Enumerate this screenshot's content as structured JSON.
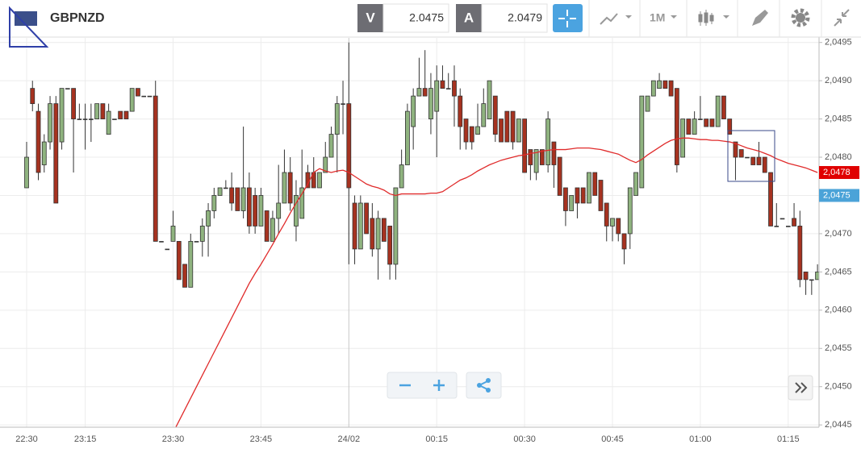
{
  "toolbar": {
    "symbol": "GBPNZD",
    "bid_label": "V",
    "bid": "2.0475",
    "ask_label": "A",
    "ask": "2.0479",
    "timeframe": "1M"
  },
  "chart_data": {
    "type": "candlestick",
    "categories": [
      "22:30",
      null,
      null,
      null,
      null,
      null,
      null,
      null,
      null,
      null,
      "23:15",
      null,
      null,
      null,
      null,
      null,
      null,
      null,
      null,
      null,
      null,
      null,
      null,
      null,
      null,
      "23:30",
      null,
      null,
      null,
      null,
      null,
      null,
      null,
      null,
      null,
      null,
      null,
      null,
      null,
      null,
      "23:45",
      null,
      null,
      null,
      null,
      null,
      null,
      null,
      null,
      null,
      null,
      null,
      null,
      null,
      null,
      "24/02",
      null,
      null,
      null,
      null,
      null,
      null,
      null,
      null,
      null,
      null,
      null,
      null,
      null,
      null,
      "00:15",
      null,
      null,
      null,
      null,
      null,
      null,
      null,
      null,
      null,
      null,
      null,
      null,
      null,
      null,
      "00:30",
      null,
      null,
      null,
      null,
      null,
      null,
      null,
      null,
      null,
      null,
      null,
      null,
      null,
      null,
      "00:45",
      null,
      null,
      null,
      null,
      null,
      null,
      null,
      null,
      null,
      null,
      null,
      null,
      null,
      null,
      "01:00",
      null,
      null,
      null,
      null,
      null,
      null,
      null,
      null,
      null,
      null,
      null,
      null,
      null,
      null,
      "01:15",
      null,
      null,
      null,
      null,
      null
    ],
    "open": [
      2.0476,
      2.0489,
      2.0486,
      2.0479,
      2.0482,
      2.0487,
      2.0482,
      2.0489,
      2.0489,
      2.0485,
      2.0485,
      2.0485,
      2.0485,
      2.0487,
      2.0483,
      2.0485,
      2.0486,
      2.0486,
      2.0486,
      2.0489,
      2.0488,
      2.0488,
      2.0488,
      2.0469,
      2.0468,
      2.0469,
      2.0469,
      2.0466,
      2.0463,
      2.0469,
      2.0469,
      2.0471,
      2.0473,
      2.0475,
      2.0476,
      2.0476,
      2.0476,
      2.0473,
      2.0476,
      2.0475,
      2.0471,
      2.0473,
      2.0469,
      2.0472,
      2.0474,
      2.0478,
      2.0471,
      2.0472,
      2.0478,
      2.0478,
      2.0476,
      2.0478,
      2.048,
      2.0483,
      2.0487,
      2.0487,
      2.0474,
      2.0468,
      2.0474,
      2.0472,
      2.0468,
      2.0472,
      2.0471,
      2.0466,
      2.0476,
      2.0479,
      2.0484,
      2.0488,
      2.0489,
      2.0485,
      2.0486,
      2.049,
      2.0489,
      2.049,
      2.0488,
      2.0485,
      2.0484,
      2.0483,
      2.0484,
      2.0485,
      2.0488,
      2.0485,
      2.0486,
      2.0486,
      2.0482,
      2.0485,
      2.0481,
      2.0478,
      2.0481,
      2.0479,
      2.0482,
      2.048,
      2.0476,
      2.0473,
      2.0476,
      2.0476,
      2.0474,
      2.0478,
      2.0477,
      2.0474,
      2.0471,
      2.0472,
      2.047,
      2.047,
      2.0475,
      2.0476,
      2.0486,
      2.0488,
      2.0489,
      2.049,
      2.049,
      2.0489,
      2.048,
      2.0485,
      2.0483,
      2.0485,
      2.0485,
      2.0485,
      2.0484,
      2.0488,
      2.0485,
      2.0482,
      2.0481,
      2.048,
      2.048,
      2.048,
      2.048,
      2.0478,
      2.0471,
      2.0472,
      2.0471,
      2.0472,
      2.0471,
      2.0465,
      2.0464,
      2.0464
    ],
    "high": [
      2.0482,
      2.049,
      2.0487,
      2.0483,
      2.0488,
      2.0488,
      2.0489,
      2.0489,
      2.0489,
      2.0487,
      2.0487,
      2.0487,
      2.0487,
      2.0487,
      2.0487,
      2.0485,
      2.0486,
      2.0486,
      2.0489,
      2.0489,
      2.0488,
      2.0488,
      2.049,
      2.0469,
      2.0468,
      2.0473,
      2.0469,
      2.0466,
      2.047,
      2.0469,
      2.0472,
      2.0474,
      2.0476,
      2.0476,
      2.0477,
      2.0478,
      2.0476,
      2.0484,
      2.0478,
      2.0476,
      2.0476,
      2.0473,
      2.0473,
      2.0479,
      2.0481,
      2.048,
      2.0477,
      2.0481,
      2.0479,
      2.048,
      2.0478,
      2.0482,
      2.0484,
      2.0488,
      2.049,
      2.0495,
      2.0475,
      2.0475,
      2.0474,
      2.0474,
      2.0473,
      2.0472,
      2.0471,
      2.0476,
      2.0481,
      2.0487,
      2.0489,
      2.0493,
      2.0494,
      2.0491,
      2.0492,
      2.0492,
      2.0491,
      2.0492,
      2.0489,
      2.0485,
      2.0484,
      2.0487,
      2.0489,
      2.049,
      2.0488,
      2.0485,
      2.0486,
      2.0486,
      2.0485,
      2.0485,
      2.0481,
      2.0481,
      2.0481,
      2.0486,
      2.0482,
      2.048,
      2.0476,
      2.0475,
      2.0476,
      2.0476,
      2.0478,
      2.0478,
      2.0477,
      2.0474,
      2.0472,
      2.0472,
      2.047,
      2.0476,
      2.0478,
      2.0488,
      2.0488,
      2.049,
      2.0491,
      2.049,
      2.049,
      2.0489,
      2.0485,
      2.0485,
      2.0486,
      2.0488,
      2.0485,
      2.0485,
      2.0488,
      2.0488,
      2.0485,
      2.0482,
      2.0481,
      2.048,
      2.048,
      2.0482,
      2.048,
      2.0478,
      2.0474,
      2.0472,
      2.0471,
      2.0474,
      2.0473,
      2.0465,
      2.0464,
      2.0466
    ],
    "low": [
      2.0476,
      2.0486,
      2.0477,
      2.0478,
      2.0481,
      2.0474,
      2.0481,
      2.0489,
      2.0478,
      2.0485,
      2.0481,
      2.0482,
      2.0485,
      2.0485,
      2.0483,
      2.0485,
      2.0485,
      2.0485,
      2.0486,
      2.0488,
      2.0488,
      2.0488,
      2.0469,
      2.0469,
      2.0468,
      2.0469,
      2.0464,
      2.0463,
      2.0463,
      2.0469,
      2.0467,
      2.0467,
      2.0472,
      2.0475,
      2.0476,
      2.0473,
      2.0473,
      2.0472,
      2.047,
      2.047,
      2.0471,
      2.0469,
      2.0469,
      2.047,
      2.0474,
      2.0473,
      2.0469,
      2.0472,
      2.0476,
      2.0476,
      2.0476,
      2.0478,
      2.048,
      2.0478,
      2.0483,
      2.0466,
      2.0466,
      2.0468,
      2.047,
      2.0467,
      2.0464,
      2.0469,
      2.0464,
      2.0464,
      2.0476,
      2.0479,
      2.0481,
      2.0488,
      2.0488,
      2.0483,
      2.048,
      2.0489,
      2.0489,
      2.0484,
      2.0481,
      2.0481,
      2.0481,
      2.0483,
      2.0484,
      2.0485,
      2.0482,
      2.0482,
      2.0482,
      2.0481,
      2.0482,
      2.0478,
      2.0477,
      2.0477,
      2.0479,
      2.0478,
      2.0476,
      2.0475,
      2.0471,
      2.0473,
      2.0472,
      2.0474,
      2.0474,
      2.0475,
      2.0473,
      2.0469,
      2.0469,
      2.0469,
      2.0466,
      2.0468,
      2.0475,
      2.0476,
      2.0486,
      2.0488,
      2.0489,
      2.0489,
      2.0488,
      2.0478,
      2.048,
      2.0483,
      2.0483,
      2.0485,
      2.0484,
      2.0484,
      2.0484,
      2.0485,
      2.0483,
      2.0477,
      2.048,
      2.048,
      2.0479,
      2.0479,
      2.0478,
      2.0471,
      2.0471,
      2.0472,
      2.0471,
      2.0471,
      2.0463,
      2.0462,
      2.0462,
      2.0464
    ],
    "close": [
      2.048,
      2.0487,
      2.0478,
      2.0482,
      2.0487,
      2.0474,
      2.0489,
      2.0489,
      2.0485,
      2.0485,
      2.0485,
      2.0485,
      2.0487,
      2.0485,
      2.0486,
      2.0485,
      2.0485,
      2.0485,
      2.0489,
      2.0488,
      2.0488,
      2.0488,
      2.0469,
      2.0469,
      2.0468,
      2.0471,
      2.0464,
      2.0463,
      2.0469,
      2.0469,
      2.0471,
      2.0473,
      2.0475,
      2.0476,
      2.0476,
      2.0474,
      2.0473,
      2.0476,
      2.0471,
      2.0471,
      2.0475,
      2.0469,
      2.0472,
      2.0474,
      2.0478,
      2.0474,
      2.0475,
      2.0476,
      2.0476,
      2.0476,
      2.0478,
      2.048,
      2.0483,
      2.0487,
      2.0487,
      2.0476,
      2.0468,
      2.0474,
      2.047,
      2.0468,
      2.0472,
      2.0469,
      2.0466,
      2.0476,
      2.0479,
      2.0486,
      2.0488,
      2.0489,
      2.0488,
      2.0489,
      2.049,
      2.0489,
      2.0489,
      2.0488,
      2.0484,
      2.0482,
      2.0482,
      2.0484,
      2.0487,
      2.049,
      2.0483,
      2.0482,
      2.0482,
      2.0482,
      2.0485,
      2.0478,
      2.0479,
      2.0481,
      2.0479,
      2.0485,
      2.0479,
      2.0475,
      2.0473,
      2.0475,
      2.0474,
      2.0474,
      2.0478,
      2.0475,
      2.0473,
      2.0471,
      2.0472,
      2.047,
      2.0468,
      2.0476,
      2.0478,
      2.0488,
      2.0488,
      2.049,
      2.049,
      2.0489,
      2.0488,
      2.0479,
      2.0485,
      2.0483,
      2.0485,
      2.0485,
      2.0484,
      2.0484,
      2.0488,
      2.0485,
      2.0483,
      2.048,
      2.048,
      2.048,
      2.0479,
      2.0479,
      2.0478,
      2.0471,
      2.0471,
      2.0472,
      2.0471,
      2.0471,
      2.0464,
      2.0464,
      2.0464,
      2.0465
    ],
    "up_color": "#8fb37f",
    "down_color": "#a63220",
    "doji_color": "#333333",
    "overlay_line": {
      "color": "#e02b2b",
      "values": [
        null,
        null,
        null,
        null,
        null,
        null,
        null,
        null,
        null,
        null,
        null,
        null,
        null,
        null,
        null,
        null,
        null,
        null,
        null,
        null,
        null,
        null,
        null,
        null,
        null,
        2.0444,
        2.04455,
        2.0447,
        2.04485,
        2.045,
        2.04515,
        2.0453,
        2.04545,
        2.0456,
        2.04575,
        2.0459,
        2.04605,
        2.0462,
        2.04635,
        2.04648,
        2.0466,
        2.04673,
        2.04686,
        2.047,
        2.04713,
        2.04727,
        2.0474,
        2.04752,
        2.04765,
        2.0478,
        2.04785,
        2.04782,
        2.0478,
        2.04782,
        2.04783,
        2.0478,
        2.04775,
        2.0477,
        2.04765,
        2.04762,
        2.0476,
        2.04757,
        2.04752,
        2.0475,
        2.04752,
        2.04752,
        2.04752,
        2.04752,
        2.04752,
        2.04753,
        2.04753,
        2.04755,
        2.0476,
        2.04765,
        2.0477,
        2.04773,
        2.04777,
        2.04782,
        2.04786,
        2.0479,
        2.04793,
        2.04796,
        2.04798,
        2.048,
        2.04802,
        2.04803,
        2.04805,
        2.04806,
        2.04808,
        2.04809,
        2.0481,
        2.0481,
        2.0481,
        2.04811,
        2.04812,
        2.04812,
        2.04812,
        2.04811,
        2.0481,
        2.04808,
        2.04806,
        2.04804,
        2.048,
        2.04796,
        2.04793,
        2.04797,
        2.04803,
        2.04808,
        2.04813,
        2.04818,
        2.04822,
        2.04824,
        2.04825,
        2.04825,
        2.04824,
        2.04823,
        2.04823,
        2.04822,
        2.04822,
        2.04821,
        2.0482,
        2.04818,
        2.04815,
        2.04812,
        2.0481,
        2.04808,
        2.04805,
        2.04802,
        2.04798,
        2.04795,
        2.04792,
        2.0479,
        2.04788,
        2.04786,
        2.04783,
        2.0478
      ]
    },
    "ylim": [
      2.04447,
      2.04956
    ],
    "yticks": [
      {
        "value": 2.0445,
        "label": "2,0445"
      },
      {
        "value": 2.045,
        "label": "2,0450"
      },
      {
        "value": 2.0455,
        "label": "2,0455"
      },
      {
        "value": 2.046,
        "label": "2,0460"
      },
      {
        "value": 2.0465,
        "label": "2,0465"
      },
      {
        "value": 2.047,
        "label": "2,0470"
      },
      {
        "value": 2.0475,
        "label": "2,0475"
      },
      {
        "value": 2.048,
        "label": "2,0480"
      },
      {
        "value": 2.0485,
        "label": "2,0485"
      },
      {
        "value": 2.049,
        "label": "2,0490"
      },
      {
        "value": 2.0495,
        "label": "2,0495"
      }
    ],
    "grid": true,
    "price_markers": [
      {
        "value": 2.0478,
        "label": "2,0478",
        "color": "#e00000"
      },
      {
        "value": 2.0475,
        "label": "2,0475",
        "color": "#4ba3d8"
      }
    ]
  }
}
